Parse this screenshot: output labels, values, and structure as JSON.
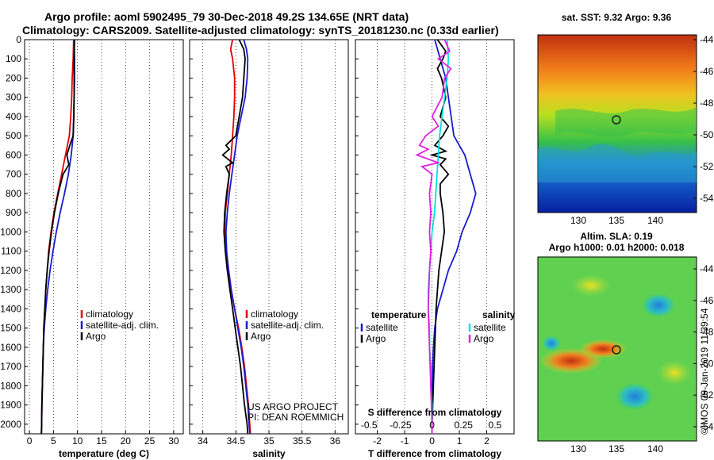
{
  "titles": {
    "line1": "Argo profile: aoml 5902495_79 30-Dec-2018 49.2S 134.65E (NRT data)",
    "line2": "Climatology: CARS2009. Satellite-adjusted climatology: synTS_20181230.nc (0.33d earlier)"
  },
  "maps": {
    "sst_title": "sat. SST: 9.32 Argo: 9.36",
    "sla_title1": "Altim. SLA: 0.19",
    "sla_title2": "Argo h1000: 0.01 h2000: 0.018",
    "lat_ticks": [
      "-44",
      "-46",
      "-48",
      "-50",
      "-52",
      "-54"
    ],
    "lon_ticks": [
      "130",
      "135",
      "140"
    ]
  },
  "side_text": "©IMOS 09-Jan-2019 11:39:54",
  "credits": [
    "US ARGO PROJECT",
    "PI: DEAN ROEMMICH"
  ],
  "colors": {
    "climatology": "#e00000",
    "satellite": "#1a1ad0",
    "argo": "#000000",
    "sal_satellite": "#00e0e0",
    "sal_argo": "#e020e0"
  },
  "chart_data": [
    {
      "type": "line",
      "xlabel": "temperature (deg C)",
      "ylim": [
        2050,
        0
      ],
      "xlim": [
        -1,
        32
      ],
      "xticks": [
        "0",
        "5",
        "10",
        "15",
        "20",
        "25",
        "30"
      ],
      "yticks": [
        "0",
        "100",
        "200",
        "300",
        "400",
        "500",
        "600",
        "700",
        "800",
        "900",
        "1000",
        "1100",
        "1200",
        "1300",
        "1400",
        "1500",
        "1600",
        "1700",
        "1800",
        "1900",
        "2000"
      ],
      "legend": [
        "climatology",
        "satellite-adj. clim.",
        "Argo"
      ],
      "series": [
        {
          "name": "climatology",
          "depth": [
            0,
            100,
            200,
            300,
            400,
            500,
            600,
            700,
            800,
            900,
            1000,
            1100,
            1200,
            1300,
            1400,
            1500,
            1600,
            1700,
            1800,
            1900,
            2000,
            2050
          ],
          "values": [
            9.2,
            9.1,
            8.9,
            8.8,
            8.6,
            8.3,
            7.5,
            6.7,
            5.9,
            5.1,
            4.5,
            4.0,
            3.7,
            3.4,
            3.2,
            3.0,
            2.9,
            2.8,
            2.7,
            2.6,
            2.55,
            2.5
          ]
        },
        {
          "name": "satellite-adj. clim.",
          "depth": [
            0,
            100,
            200,
            300,
            400,
            500,
            600,
            700,
            800,
            900,
            1000,
            1100,
            1200,
            1300,
            1400,
            1500,
            1600,
            1700,
            1800,
            1900,
            2000,
            2050
          ],
          "values": [
            9.3,
            9.4,
            9.4,
            9.3,
            9.2,
            9.1,
            8.7,
            8.1,
            7.3,
            6.4,
            5.6,
            4.9,
            4.3,
            3.8,
            3.4,
            3.1,
            2.9,
            2.8,
            2.7,
            2.6,
            2.55,
            2.5
          ]
        },
        {
          "name": "Argo",
          "depth": [
            0,
            100,
            200,
            300,
            400,
            500,
            550,
            600,
            650,
            700,
            800,
            900,
            1000,
            1100,
            1200,
            1300,
            1400,
            1500,
            1600,
            1700,
            1800,
            1900,
            2000,
            2050
          ],
          "values": [
            9.4,
            9.3,
            9.3,
            9.3,
            9.25,
            9.1,
            8.4,
            7.8,
            8.2,
            7.0,
            6.0,
            5.2,
            4.6,
            4.1,
            3.7,
            3.4,
            3.2,
            3.0,
            2.9,
            2.8,
            2.7,
            2.6,
            2.55,
            2.5
          ]
        }
      ]
    },
    {
      "type": "line",
      "xlabel": "salinity",
      "ylim": [
        2050,
        0
      ],
      "xlim": [
        33.8,
        36.2
      ],
      "xticks": [
        "34",
        "34.5",
        "35",
        "35.5",
        "36"
      ],
      "legend": [
        "climatology",
        "satellite-adj. clim.",
        "Argo"
      ],
      "series": [
        {
          "name": "climatology",
          "depth": [
            0,
            50,
            100,
            200,
            300,
            400,
            500,
            600,
            700,
            800,
            900,
            1000,
            1100,
            1200,
            1300,
            1400,
            1500,
            1600,
            1700,
            1800,
            1900,
            2000,
            2050
          ],
          "values": [
            34.45,
            34.42,
            34.45,
            34.48,
            34.48,
            34.47,
            34.45,
            34.43,
            34.4,
            34.37,
            34.34,
            34.33,
            34.35,
            34.39,
            34.43,
            34.48,
            34.54,
            34.59,
            34.63,
            34.66,
            34.69,
            34.71,
            34.72
          ]
        },
        {
          "name": "satellite-adj. clim.",
          "depth": [
            0,
            50,
            100,
            200,
            300,
            400,
            500,
            600,
            700,
            800,
            900,
            1000,
            1100,
            1200,
            1300,
            1400,
            1500,
            1600,
            1700,
            1800,
            1900,
            2000,
            2050
          ],
          "values": [
            34.62,
            34.66,
            34.68,
            34.67,
            34.64,
            34.58,
            34.52,
            34.48,
            34.44,
            34.4,
            34.37,
            34.35,
            34.36,
            34.39,
            34.43,
            34.48,
            34.53,
            34.58,
            34.62,
            34.65,
            34.68,
            34.7,
            34.71
          ]
        },
        {
          "name": "Argo",
          "depth": [
            0,
            50,
            100,
            200,
            300,
            400,
            500,
            550,
            570,
            600,
            640,
            660,
            700,
            800,
            900,
            1000,
            1100,
            1200,
            1300,
            1400,
            1500,
            1600,
            1700,
            1800,
            1900,
            2000,
            2050
          ],
          "values": [
            34.55,
            34.62,
            34.64,
            34.62,
            34.6,
            34.55,
            34.5,
            34.35,
            34.4,
            34.3,
            34.45,
            34.35,
            34.4,
            34.36,
            34.33,
            34.32,
            34.34,
            34.37,
            34.41,
            34.45,
            34.49,
            34.53,
            34.57,
            34.6,
            34.63,
            34.67,
            34.68
          ]
        }
      ]
    },
    {
      "type": "line",
      "xlabel": "T difference from climatology",
      "top_label": "S difference from climatology",
      "ylim": [
        2050,
        0
      ],
      "xlim": [
        -2.8,
        3.0
      ],
      "xticks": [
        "-2",
        "-1",
        "0",
        "1",
        "2"
      ],
      "top_ticks": [
        "-0.5",
        "-0.25",
        "0",
        "0.25",
        "0.5"
      ],
      "legend_left_title": "temperature",
      "legend_right_title": "salinity",
      "legend_left": [
        "satellite",
        "Argo"
      ],
      "legend_right": [
        "satellite",
        "Argo"
      ],
      "series": [
        {
          "name": "temperature satellite",
          "depth": [
            0,
            100,
            200,
            300,
            400,
            500,
            600,
            700,
            800,
            900,
            1000,
            1100,
            1200,
            1300,
            1400,
            1500,
            1600,
            1700,
            1800,
            1900,
            2000,
            2050
          ],
          "values": [
            0.1,
            0.3,
            0.5,
            0.6,
            0.7,
            0.8,
            1.2,
            1.4,
            1.6,
            1.4,
            1.1,
            0.9,
            0.6,
            0.4,
            0.2,
            0.1,
            0.05,
            0.02,
            0.01,
            0.0,
            0.0,
            0.0
          ]
        },
        {
          "name": "temperature Argo",
          "depth": [
            0,
            60,
            100,
            150,
            200,
            300,
            400,
            450,
            500,
            550,
            580,
            600,
            620,
            650,
            700,
            750,
            800,
            900,
            1000,
            1200,
            1400,
            1600,
            1800,
            2000,
            2050
          ],
          "values": [
            0.2,
            0.5,
            0.4,
            0.2,
            0.35,
            0.5,
            0.3,
            0.6,
            0.4,
            0.1,
            0.5,
            0.0,
            0.5,
            0.3,
            0.6,
            0.3,
            0.3,
            0.4,
            0.45,
            0.25,
            0.15,
            0.1,
            0.05,
            0.0,
            0.0
          ]
        },
        {
          "name": "salinity satellite",
          "depth": [
            0,
            100,
            200,
            300,
            400,
            500,
            600,
            700,
            800,
            900,
            1000,
            1100,
            1200,
            1300,
            1400,
            1500,
            1600,
            1700,
            1800,
            1900,
            2000,
            2050
          ],
          "values": [
            0.12,
            0.13,
            0.12,
            0.1,
            0.08,
            0.06,
            0.05,
            0.04,
            0.03,
            0.02,
            0.0,
            -0.01,
            -0.02,
            -0.03,
            -0.03,
            -0.02,
            -0.02,
            -0.01,
            -0.01,
            0.0,
            0.0,
            0.0
          ]
        },
        {
          "name": "salinity Argo",
          "depth": [
            0,
            60,
            100,
            150,
            200,
            300,
            400,
            450,
            500,
            550,
            570,
            600,
            640,
            660,
            700,
            800,
            900,
            1000,
            1100,
            1200,
            1400,
            1600,
            1800,
            2000,
            2050
          ],
          "values": [
            0.1,
            0.14,
            0.05,
            0.15,
            0.1,
            0.08,
            0.0,
            0.05,
            -0.05,
            -0.1,
            -0.03,
            -0.12,
            0.05,
            -0.08,
            0.0,
            -0.02,
            -0.01,
            -0.02,
            -0.01,
            -0.02,
            -0.03,
            -0.02,
            -0.01,
            0.0,
            0.0
          ]
        }
      ]
    }
  ]
}
